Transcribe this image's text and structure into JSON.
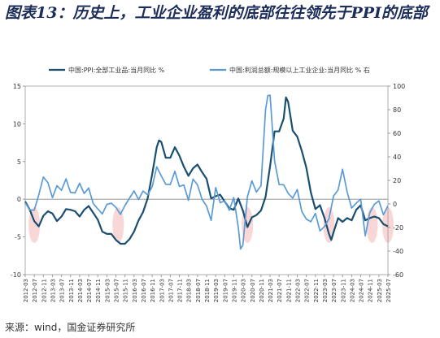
{
  "title": "图表13：历史上，工业企业盈利的底部往往领先于PPI的底部",
  "source": "来源：wind，国金证券研究所",
  "colors": {
    "ppi": "#1b4f72",
    "profit": "#5b9bd5",
    "highlight": "#f4b6b6",
    "axis": "#999999"
  },
  "chart_data": {
    "type": "line",
    "legend": [
      "中国:PPI:全部工业品:当月同比 %",
      "中国:利润总额:规模以上工业企业:当月同比 % 右"
    ],
    "legend_placement": "top",
    "grid": false,
    "x_tick_labels": [
      "2012-03",
      "2012-07",
      "2012-11",
      "2013-03",
      "2013-07",
      "2013-11",
      "2014-03",
      "2014-07",
      "2014-11",
      "2015-03",
      "2015-07",
      "2015-11",
      "2016-03",
      "2016-07",
      "2016-11",
      "2017-03",
      "2017-07",
      "2017-11",
      "2018-03",
      "2018-07",
      "2018-11",
      "2019-03",
      "2019-07",
      "2019-11",
      "2020-03",
      "2020-07",
      "2020-11",
      "2021-03",
      "2021-07",
      "2021-11",
      "2022-03",
      "2022-07",
      "2022-11",
      "2023-03",
      "2023-07",
      "2023-11",
      "2024-03",
      "2024-07",
      "2024-11",
      "2025-03",
      "2025-07"
    ],
    "y_left": {
      "ticks": [
        -10,
        -5,
        0,
        5,
        10,
        15
      ],
      "ylim": [
        -10,
        15
      ]
    },
    "y_right": {
      "ticks": [
        -60,
        -40,
        -20,
        0,
        20,
        40,
        60,
        80,
        100
      ],
      "ylim": [
        -60,
        100
      ]
    },
    "highlight_periods": [
      "2012-07",
      "2015-08",
      "2020-05",
      "2023-05",
      "2024-12",
      "2025-07"
    ],
    "series": [
      {
        "name": "中国:PPI:全部工业品:当月同比 %",
        "axis": "left",
        "points": [
          [
            "2012-03",
            -0.3
          ],
          [
            "2012-05",
            -1.4
          ],
          [
            "2012-07",
            -2.9
          ],
          [
            "2012-09",
            -3.6
          ],
          [
            "2012-11",
            -2.2
          ],
          [
            "2013-01",
            -1.6
          ],
          [
            "2013-03",
            -1.9
          ],
          [
            "2013-05",
            -2.9
          ],
          [
            "2013-07",
            -2.3
          ],
          [
            "2013-09",
            -1.3
          ],
          [
            "2013-11",
            -1.4
          ],
          [
            "2014-01",
            -1.6
          ],
          [
            "2014-03",
            -2.3
          ],
          [
            "2014-05",
            -1.4
          ],
          [
            "2014-07",
            -0.9
          ],
          [
            "2014-09",
            -1.8
          ],
          [
            "2014-11",
            -2.7
          ],
          [
            "2015-01",
            -4.3
          ],
          [
            "2015-03",
            -4.6
          ],
          [
            "2015-05",
            -4.6
          ],
          [
            "2015-07",
            -5.4
          ],
          [
            "2015-09",
            -5.9
          ],
          [
            "2015-11",
            -5.9
          ],
          [
            "2016-01",
            -5.3
          ],
          [
            "2016-03",
            -4.3
          ],
          [
            "2016-05",
            -2.8
          ],
          [
            "2016-07",
            -1.7
          ],
          [
            "2016-09",
            0.1
          ],
          [
            "2016-11",
            3.3
          ],
          [
            "2017-01",
            6.9
          ],
          [
            "2017-02",
            7.8
          ],
          [
            "2017-03",
            7.6
          ],
          [
            "2017-05",
            5.5
          ],
          [
            "2017-07",
            5.5
          ],
          [
            "2017-09",
            6.9
          ],
          [
            "2017-11",
            5.8
          ],
          [
            "2018-01",
            4.3
          ],
          [
            "2018-03",
            3.1
          ],
          [
            "2018-05",
            4.1
          ],
          [
            "2018-07",
            4.6
          ],
          [
            "2018-09",
            3.6
          ],
          [
            "2018-11",
            2.7
          ],
          [
            "2019-01",
            0.1
          ],
          [
            "2019-03",
            0.4
          ],
          [
            "2019-05",
            0.6
          ],
          [
            "2019-07",
            -0.3
          ],
          [
            "2019-09",
            -1.2
          ],
          [
            "2019-11",
            -1.4
          ],
          [
            "2020-01",
            0.1
          ],
          [
            "2020-03",
            -1.5
          ],
          [
            "2020-05",
            -3.7
          ],
          [
            "2020-07",
            -2.4
          ],
          [
            "2020-09",
            -2.1
          ],
          [
            "2020-11",
            -1.5
          ],
          [
            "2021-01",
            0.3
          ],
          [
            "2021-03",
            4.4
          ],
          [
            "2021-05",
            9.0
          ],
          [
            "2021-07",
            9.0
          ],
          [
            "2021-09",
            10.7
          ],
          [
            "2021-10",
            13.5
          ],
          [
            "2021-11",
            12.9
          ],
          [
            "2022-01",
            9.1
          ],
          [
            "2022-03",
            8.3
          ],
          [
            "2022-05",
            6.4
          ],
          [
            "2022-07",
            4.2
          ],
          [
            "2022-09",
            0.9
          ],
          [
            "2022-11",
            -1.3
          ],
          [
            "2023-01",
            -0.8
          ],
          [
            "2023-03",
            -2.5
          ],
          [
            "2023-05",
            -4.6
          ],
          [
            "2023-06",
            -5.4
          ],
          [
            "2023-07",
            -4.4
          ],
          [
            "2023-09",
            -2.5
          ],
          [
            "2023-11",
            -3.0
          ],
          [
            "2024-01",
            -2.5
          ],
          [
            "2024-03",
            -2.8
          ],
          [
            "2024-05",
            -1.4
          ],
          [
            "2024-07",
            -0.8
          ],
          [
            "2024-09",
            -2.8
          ],
          [
            "2024-11",
            -2.5
          ],
          [
            "2025-01",
            -2.3
          ],
          [
            "2025-03",
            -2.5
          ],
          [
            "2025-05",
            -3.3
          ],
          [
            "2025-07",
            -3.6
          ]
        ]
      },
      {
        "name": "中国:利润总额:规模以上工业企业:当月同比 % 右",
        "axis": "right",
        "points": [
          [
            "2012-03",
            1.0
          ],
          [
            "2012-05",
            -5.0
          ],
          [
            "2012-07",
            -5.4
          ],
          [
            "2012-09",
            7.8
          ],
          [
            "2012-11",
            22.8
          ],
          [
            "2013-01",
            18.0
          ],
          [
            "2013-03",
            5.3
          ],
          [
            "2013-05",
            15.5
          ],
          [
            "2013-07",
            11.6
          ],
          [
            "2013-09",
            21.3
          ],
          [
            "2013-11",
            9.7
          ],
          [
            "2014-01",
            9.4
          ],
          [
            "2014-03",
            17.6
          ],
          [
            "2014-05",
            8.9
          ],
          [
            "2014-07",
            13.5
          ],
          [
            "2014-09",
            0.4
          ],
          [
            "2014-11",
            -4.2
          ],
          [
            "2015-01",
            -8.5
          ],
          [
            "2015-03",
            -0.4
          ],
          [
            "2015-05",
            0.6
          ],
          [
            "2015-07",
            -2.9
          ],
          [
            "2015-09",
            -8.8
          ],
          [
            "2015-11",
            -1.4
          ],
          [
            "2016-01",
            4.8
          ],
          [
            "2016-03",
            11.1
          ],
          [
            "2016-05",
            3.7
          ],
          [
            "2016-07",
            11.0
          ],
          [
            "2016-09",
            7.7
          ],
          [
            "2016-11",
            14.5
          ],
          [
            "2017-01",
            31.5
          ],
          [
            "2017-03",
            23.8
          ],
          [
            "2017-05",
            16.7
          ],
          [
            "2017-07",
            16.5
          ],
          [
            "2017-09",
            27.7
          ],
          [
            "2017-11",
            14.9
          ],
          [
            "2018-01",
            16.1
          ],
          [
            "2018-03",
            3.1
          ],
          [
            "2018-05",
            21.1
          ],
          [
            "2018-07",
            16.2
          ],
          [
            "2018-09",
            4.1
          ],
          [
            "2018-11",
            -1.8
          ],
          [
            "2019-01",
            -14.0
          ],
          [
            "2019-03",
            13.9
          ],
          [
            "2019-05",
            1.1
          ],
          [
            "2019-07",
            2.6
          ],
          [
            "2019-09",
            -5.3
          ],
          [
            "2019-11",
            5.4
          ],
          [
            "2020-01",
            -20.0
          ],
          [
            "2020-02",
            -38.3
          ],
          [
            "2020-03",
            -34.9
          ],
          [
            "2020-05",
            6.0
          ],
          [
            "2020-07",
            19.6
          ],
          [
            "2020-09",
            10.1
          ],
          [
            "2020-11",
            15.5
          ],
          [
            "2021-01",
            80.0
          ],
          [
            "2021-02",
            92.0
          ],
          [
            "2021-03",
            92.3
          ],
          [
            "2021-05",
            36.4
          ],
          [
            "2021-07",
            16.4
          ],
          [
            "2021-09",
            16.3
          ],
          [
            "2021-11",
            9.0
          ],
          [
            "2022-01",
            5.0
          ],
          [
            "2022-03",
            12.2
          ],
          [
            "2022-05",
            -6.5
          ],
          [
            "2022-07",
            -12.8
          ],
          [
            "2022-09",
            -15.1
          ],
          [
            "2022-11",
            -8.0
          ],
          [
            "2023-01",
            -22.9
          ],
          [
            "2023-03",
            -19.2
          ],
          [
            "2023-05",
            -12.6
          ],
          [
            "2023-07",
            6.7
          ],
          [
            "2023-09",
            11.9
          ],
          [
            "2023-11",
            29.5
          ],
          [
            "2024-01",
            10.2
          ],
          [
            "2024-03",
            -3.5
          ],
          [
            "2024-05",
            0.7
          ],
          [
            "2024-07",
            4.1
          ],
          [
            "2024-09",
            -27.1
          ],
          [
            "2024-11",
            -7.3
          ],
          [
            "2025-01",
            -0.3
          ],
          [
            "2025-03",
            2.6
          ],
          [
            "2025-05",
            -9.1
          ],
          [
            "2025-07",
            -1.5
          ]
        ]
      }
    ]
  }
}
